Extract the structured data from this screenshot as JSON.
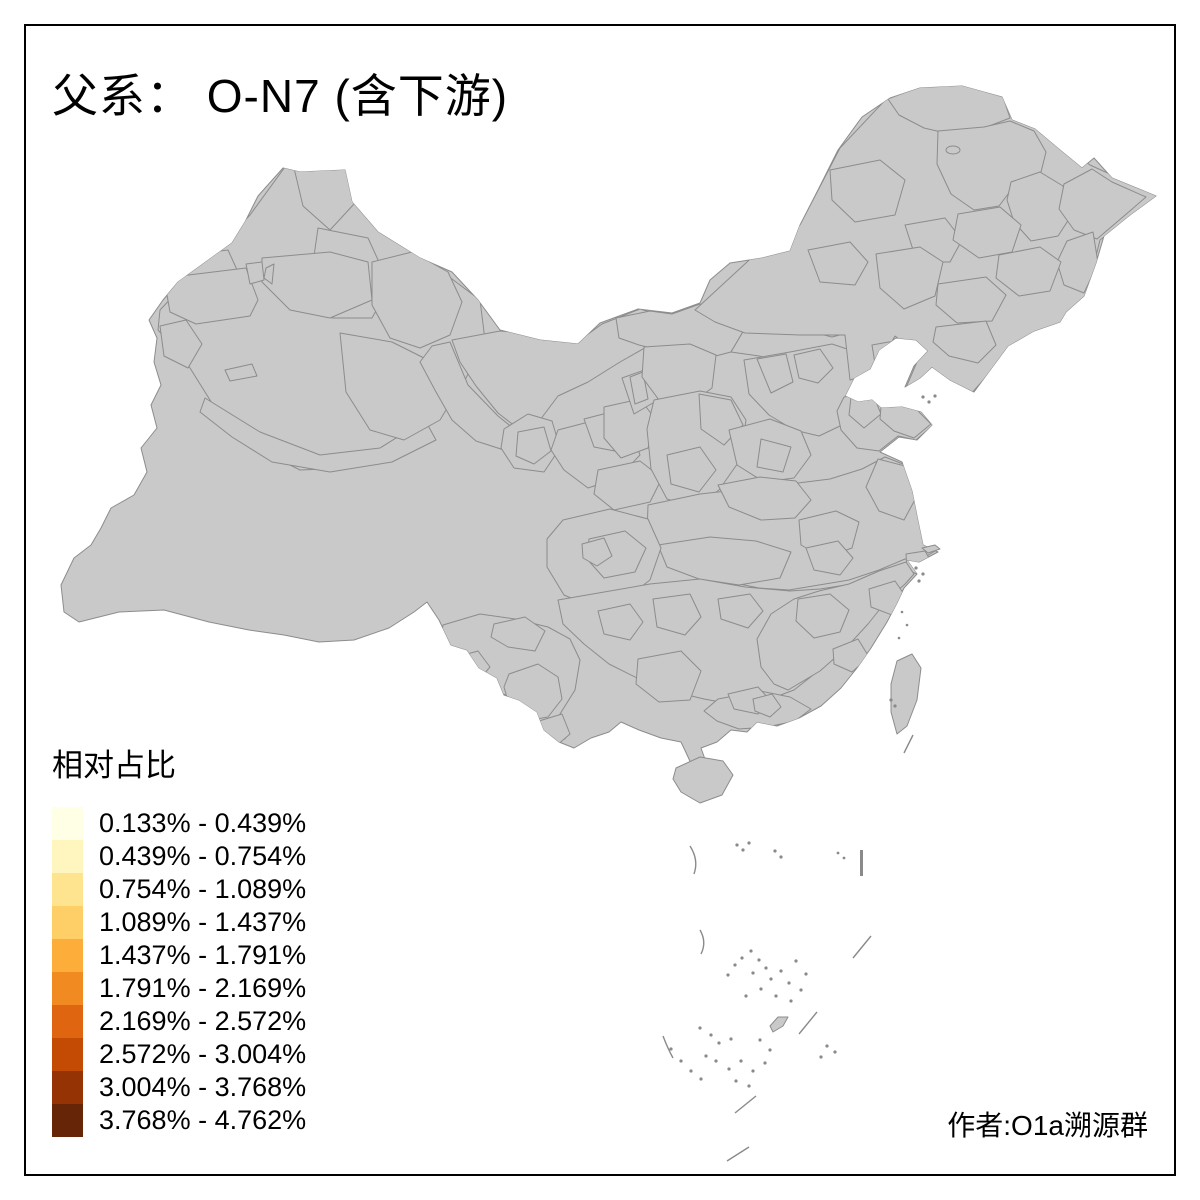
{
  "title": "父系： O-N7 (含下游)",
  "legend": {
    "title": "相对占比",
    "items": [
      {
        "label": "0.133% - 0.439%",
        "color": "#FFFFE5"
      },
      {
        "label": "0.439% - 0.754%",
        "color": "#FFF5BF"
      },
      {
        "label": "0.754% - 1.089%",
        "color": "#FEE48F"
      },
      {
        "label": "1.089% - 1.437%",
        "color": "#FECF66"
      },
      {
        "label": "1.437% - 1.791%",
        "color": "#FDAE3A"
      },
      {
        "label": "1.791% - 2.169%",
        "color": "#F08A21"
      },
      {
        "label": "2.169% - 2.572%",
        "color": "#E06511"
      },
      {
        "label": "2.572% - 3.004%",
        "color": "#C44B04"
      },
      {
        "label": "3.004% - 3.768%",
        "color": "#963304"
      },
      {
        "label": "3.768% - 4.762%",
        "color": "#662506"
      }
    ]
  },
  "attribution": "作者:O1a溯源群",
  "palette": {
    "c1": "#FFFFE5",
    "c2": "#FFF5BF",
    "c3": "#FEE48F",
    "c4": "#FECF66",
    "c5": "#FDAE3A",
    "c6": "#F08A21",
    "c7": "#E06511",
    "c8": "#C44B04",
    "c9": "#963304",
    "c10": "#662506",
    "c10b": "#7A2A05",
    "nodata": "#C9C9C9",
    "frame": "#000000",
    "boundary": "#8C8C8C",
    "coast": "#6E6E6E",
    "text": "#000000",
    "background": "#FFFFFF"
  }
}
